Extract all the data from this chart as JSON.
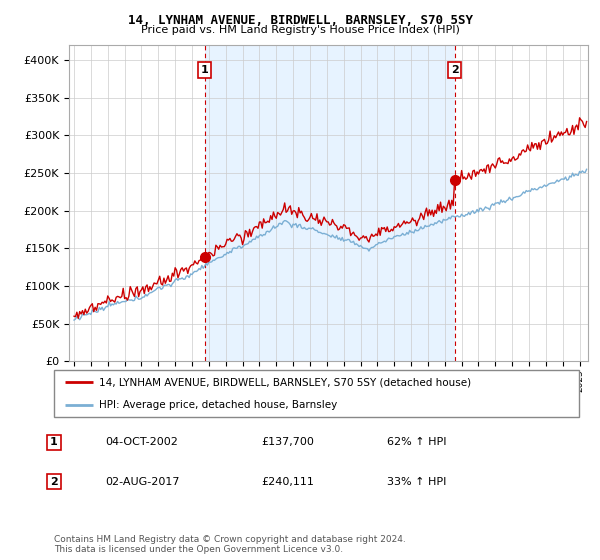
{
  "title": "14, LYNHAM AVENUE, BIRDWELL, BARNSLEY, S70 5SY",
  "subtitle": "Price paid vs. HM Land Registry's House Price Index (HPI)",
  "ylim": [
    0,
    420000
  ],
  "yticks": [
    0,
    50000,
    100000,
    150000,
    200000,
    250000,
    300000,
    350000,
    400000
  ],
  "xlim_start": 1994.7,
  "xlim_end": 2025.5,
  "sale1_x": 2002.75,
  "sale1_y": 137700,
  "sale2_x": 2017.58,
  "sale2_y": 240111,
  "sale1_label": "1",
  "sale2_label": "2",
  "legend_line1": "14, LYNHAM AVENUE, BIRDWELL, BARNSLEY, S70 5SY (detached house)",
  "legend_line2": "HPI: Average price, detached house, Barnsley",
  "table_row1": [
    "1",
    "04-OCT-2002",
    "£137,700",
    "62% ↑ HPI"
  ],
  "table_row2": [
    "2",
    "02-AUG-2017",
    "£240,111",
    "33% ↑ HPI"
  ],
  "footnote": "Contains HM Land Registry data © Crown copyright and database right 2024.\nThis data is licensed under the Open Government Licence v3.0.",
  "hpi_color": "#7bafd4",
  "price_color": "#cc0000",
  "grid_color": "#cccccc",
  "background_color": "#ffffff",
  "fill_color": "#ddeeff",
  "title_fontsize": 9,
  "subtitle_fontsize": 8
}
